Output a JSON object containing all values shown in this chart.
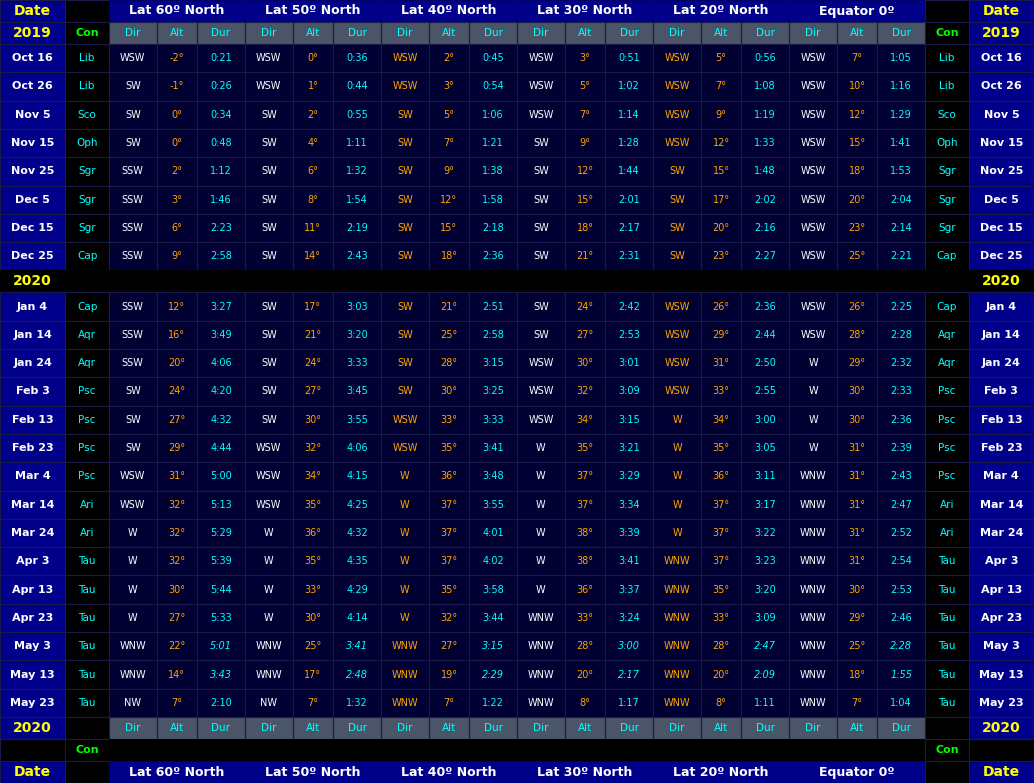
{
  "lat_labels": [
    "Lat 60º North",
    "Lat 50º North",
    "Lat 40º North",
    "Lat 30º North",
    "Lat 20º North",
    "Equator 0º"
  ],
  "rows_2019": [
    [
      "Oct 16",
      "Lib",
      "WSW",
      "-2°",
      "0:21",
      "WSW",
      "0°",
      "0:36",
      "WSW",
      "2°",
      "0:45",
      "WSW",
      "3°",
      "0:51",
      "WSW",
      "5°",
      "0:56",
      "WSW",
      "7°",
      "1:05"
    ],
    [
      "Oct 26",
      "Lib",
      "SW",
      "-1°",
      "0:26",
      "WSW",
      "1°",
      "0:44",
      "WSW",
      "3°",
      "0:54",
      "WSW",
      "5°",
      "1:02",
      "WSW",
      "7°",
      "1:08",
      "WSW",
      "10°",
      "1:16"
    ],
    [
      "Nov 5",
      "Sco",
      "SW",
      "0°",
      "0:34",
      "SW",
      "2°",
      "0:55",
      "SW",
      "5°",
      "1:06",
      "WSW",
      "7°",
      "1:14",
      "WSW",
      "9°",
      "1:19",
      "WSW",
      "12°",
      "1:29"
    ],
    [
      "Nov 15",
      "Oph",
      "SW",
      "0°",
      "0:48",
      "SW",
      "4°",
      "1:11",
      "SW",
      "7°",
      "1:21",
      "SW",
      "9°",
      "1:28",
      "WSW",
      "12°",
      "1:33",
      "WSW",
      "15°",
      "1:41"
    ],
    [
      "Nov 25",
      "Sgr",
      "SSW",
      "2°",
      "1:12",
      "SW",
      "6°",
      "1:32",
      "SW",
      "9°",
      "1:38",
      "SW",
      "12°",
      "1:44",
      "SW",
      "15°",
      "1:48",
      "WSW",
      "18°",
      "1:53"
    ],
    [
      "Dec 5",
      "Sgr",
      "SSW",
      "3°",
      "1:46",
      "SW",
      "8°",
      "1:54",
      "SW",
      "12°",
      "1:58",
      "SW",
      "15°",
      "2:01",
      "SW",
      "17°",
      "2:02",
      "WSW",
      "20°",
      "2:04"
    ],
    [
      "Dec 15",
      "Sgr",
      "SSW",
      "6°",
      "2:23",
      "SW",
      "11°",
      "2:19",
      "SW",
      "15°",
      "2:18",
      "SW",
      "18°",
      "2:17",
      "SW",
      "20°",
      "2:16",
      "WSW",
      "23°",
      "2:14"
    ],
    [
      "Dec 25",
      "Cap",
      "SSW",
      "9°",
      "2:58",
      "SW",
      "14°",
      "2:43",
      "SW",
      "18°",
      "2:36",
      "SW",
      "21°",
      "2:31",
      "SW",
      "23°",
      "2:27",
      "WSW",
      "25°",
      "2:21"
    ]
  ],
  "rows_2020": [
    [
      "Jan 4",
      "Cap",
      "SSW",
      "12°",
      "3:27",
      "SW",
      "17°",
      "3:03",
      "SW",
      "21°",
      "2:51",
      "SW",
      "24°",
      "2:42",
      "WSW",
      "26°",
      "2:36",
      "WSW",
      "26°",
      "2:25"
    ],
    [
      "Jan 14",
      "Aqr",
      "SSW",
      "16°",
      "3:49",
      "SW",
      "21°",
      "3:20",
      "SW",
      "25°",
      "2:58",
      "SW",
      "27°",
      "2:53",
      "WSW",
      "29°",
      "2:44",
      "WSW",
      "28°",
      "2:28"
    ],
    [
      "Jan 24",
      "Aqr",
      "SSW",
      "20°",
      "4:06",
      "SW",
      "24°",
      "3:33",
      "SW",
      "28°",
      "3:15",
      "WSW",
      "30°",
      "3:01",
      "WSW",
      "31°",
      "2:50",
      "W",
      "29°",
      "2:32"
    ],
    [
      "Feb 3",
      "Psc",
      "SW",
      "24°",
      "4:20",
      "SW",
      "27°",
      "3:45",
      "SW",
      "30°",
      "3:25",
      "WSW",
      "32°",
      "3:09",
      "WSW",
      "33°",
      "2:55",
      "W",
      "30°",
      "2:33"
    ],
    [
      "Feb 13",
      "Psc",
      "SW",
      "27°",
      "4:32",
      "SW",
      "30°",
      "3:55",
      "WSW",
      "33°",
      "3:33",
      "WSW",
      "34°",
      "3:15",
      "W",
      "34°",
      "3:00",
      "W",
      "30°",
      "2:36"
    ],
    [
      "Feb 23",
      "Psc",
      "SW",
      "29°",
      "4:44",
      "WSW",
      "32°",
      "4:06",
      "WSW",
      "35°",
      "3:41",
      "W",
      "35°",
      "3:21",
      "W",
      "35°",
      "3:05",
      "W",
      "31°",
      "2:39"
    ],
    [
      "Mar 4",
      "Psc",
      "WSW",
      "31°",
      "5:00",
      "WSW",
      "34°",
      "4:15",
      "W",
      "36°",
      "3:48",
      "W",
      "37°",
      "3:29",
      "W",
      "36°",
      "3:11",
      "WNW",
      "31°",
      "2:43"
    ],
    [
      "Mar 14",
      "Ari",
      "WSW",
      "32°",
      "5:13",
      "WSW",
      "35°",
      "4:25",
      "W",
      "37°",
      "3:55",
      "W",
      "37°",
      "3:34",
      "W",
      "37°",
      "3:17",
      "WNW",
      "31°",
      "2:47"
    ],
    [
      "Mar 24",
      "Ari",
      "W",
      "32°",
      "5:29",
      "W",
      "36°",
      "4:32",
      "W",
      "37°",
      "4:01",
      "W",
      "38°",
      "3:39",
      "W",
      "37°",
      "3:22",
      "WNW",
      "31°",
      "2:52"
    ],
    [
      "Apr 3",
      "Tau",
      "W",
      "32°",
      "5:39",
      "W",
      "35°",
      "4:35",
      "W",
      "37°",
      "4:02",
      "W",
      "38°",
      "3:41",
      "WNW",
      "37°",
      "3:23",
      "WNW",
      "31°",
      "2:54"
    ],
    [
      "Apr 13",
      "Tau",
      "W",
      "30°",
      "5:44",
      "W",
      "33°",
      "4:29",
      "W",
      "35°",
      "3:58",
      "W",
      "36°",
      "3:37",
      "WNW",
      "35°",
      "3:20",
      "WNW",
      "30°",
      "2:53"
    ],
    [
      "Apr 23",
      "Tau",
      "W",
      "27°",
      "5:33",
      "W",
      "30°",
      "4:14",
      "W",
      "32°",
      "3:44",
      "WNW",
      "33°",
      "3:24",
      "WNW",
      "33°",
      "3:09",
      "WNW",
      "29°",
      "2:46"
    ],
    [
      "May 3",
      "Tau",
      "WNW",
      "22°",
      "5:01",
      "WNW",
      "25°",
      "3:41",
      "WNW",
      "27°",
      "3:15",
      "WNW",
      "28°",
      "3:00",
      "WNW",
      "28°",
      "2:47",
      "WNW",
      "25°",
      "2:28"
    ],
    [
      "May 13",
      "Tau",
      "WNW",
      "14°",
      "3:43",
      "WNW",
      "17°",
      "2:48",
      "WNW",
      "19°",
      "2:29",
      "WNW",
      "20°",
      "2:17",
      "WNW",
      "20°",
      "2:09",
      "WNW",
      "18°",
      "1:55"
    ],
    [
      "May 23",
      "Tau",
      "NW",
      "7°",
      "2:10",
      "NW",
      "7°",
      "1:32",
      "WNW",
      "7°",
      "1:22",
      "WNW",
      "8°",
      "1:17",
      "WNW",
      "8°",
      "1:11",
      "WNW",
      "7°",
      "1:04"
    ]
  ],
  "italic_rows_2020": [
    12,
    13
  ],
  "colors": {
    "bg": "#000000",
    "header_blue": "#00008B",
    "header_blue2": "#000099",
    "cell_dark": "#000033",
    "cell_navy": "#00003A",
    "date_col_bg": "#000066",
    "con_col_bg": "#000000",
    "text_white": "#FFFFFF",
    "text_cyan": "#00FFFF",
    "text_yellow": "#FFFF00",
    "text_green": "#00FF00",
    "text_orange": "#FFA500",
    "text_gold": "#FFD700",
    "subheader_bg": "#4A5568",
    "year_gap_bg": "#000000",
    "grid_dark": "#1a1a3a",
    "grid_light": "#333366"
  }
}
